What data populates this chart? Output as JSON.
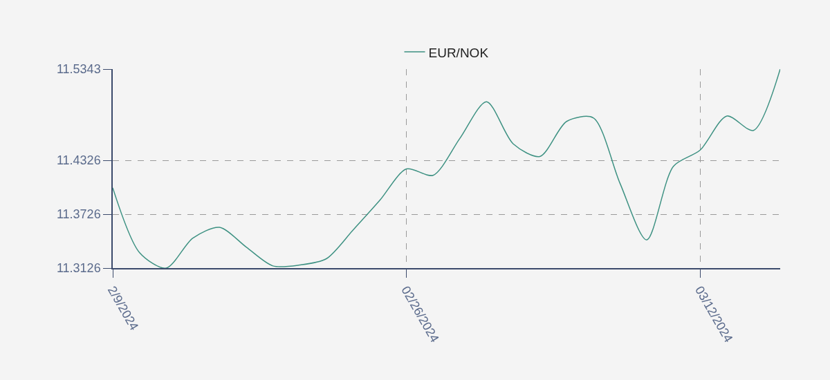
{
  "chart_data": {
    "type": "line",
    "categories": [
      "2/9/2024",
      null,
      null,
      null,
      null,
      null,
      null,
      null,
      null,
      null,
      null,
      "02/26/2024",
      null,
      null,
      null,
      null,
      null,
      null,
      null,
      null,
      null,
      null,
      "03/12/2024",
      null,
      null,
      null
    ],
    "series": [
      {
        "name": "EUR/NOK",
        "color": "#3d9182",
        "values": [
          11.402,
          11.33,
          11.3126,
          11.346,
          11.358,
          11.336,
          11.315,
          11.316,
          11.323,
          11.355,
          11.388,
          11.423,
          11.416,
          11.457,
          11.498,
          11.451,
          11.437,
          11.476,
          11.48,
          11.407,
          11.344,
          11.426,
          11.444,
          11.482,
          11.466,
          11.5343
        ]
      }
    ],
    "ylim": [
      11.3126,
      11.5343
    ],
    "yticks": [
      11.3126,
      11.3726,
      11.4326,
      11.5343
    ],
    "grid": true,
    "legend": "top",
    "marker": "none",
    "line_style": "solid"
  }
}
